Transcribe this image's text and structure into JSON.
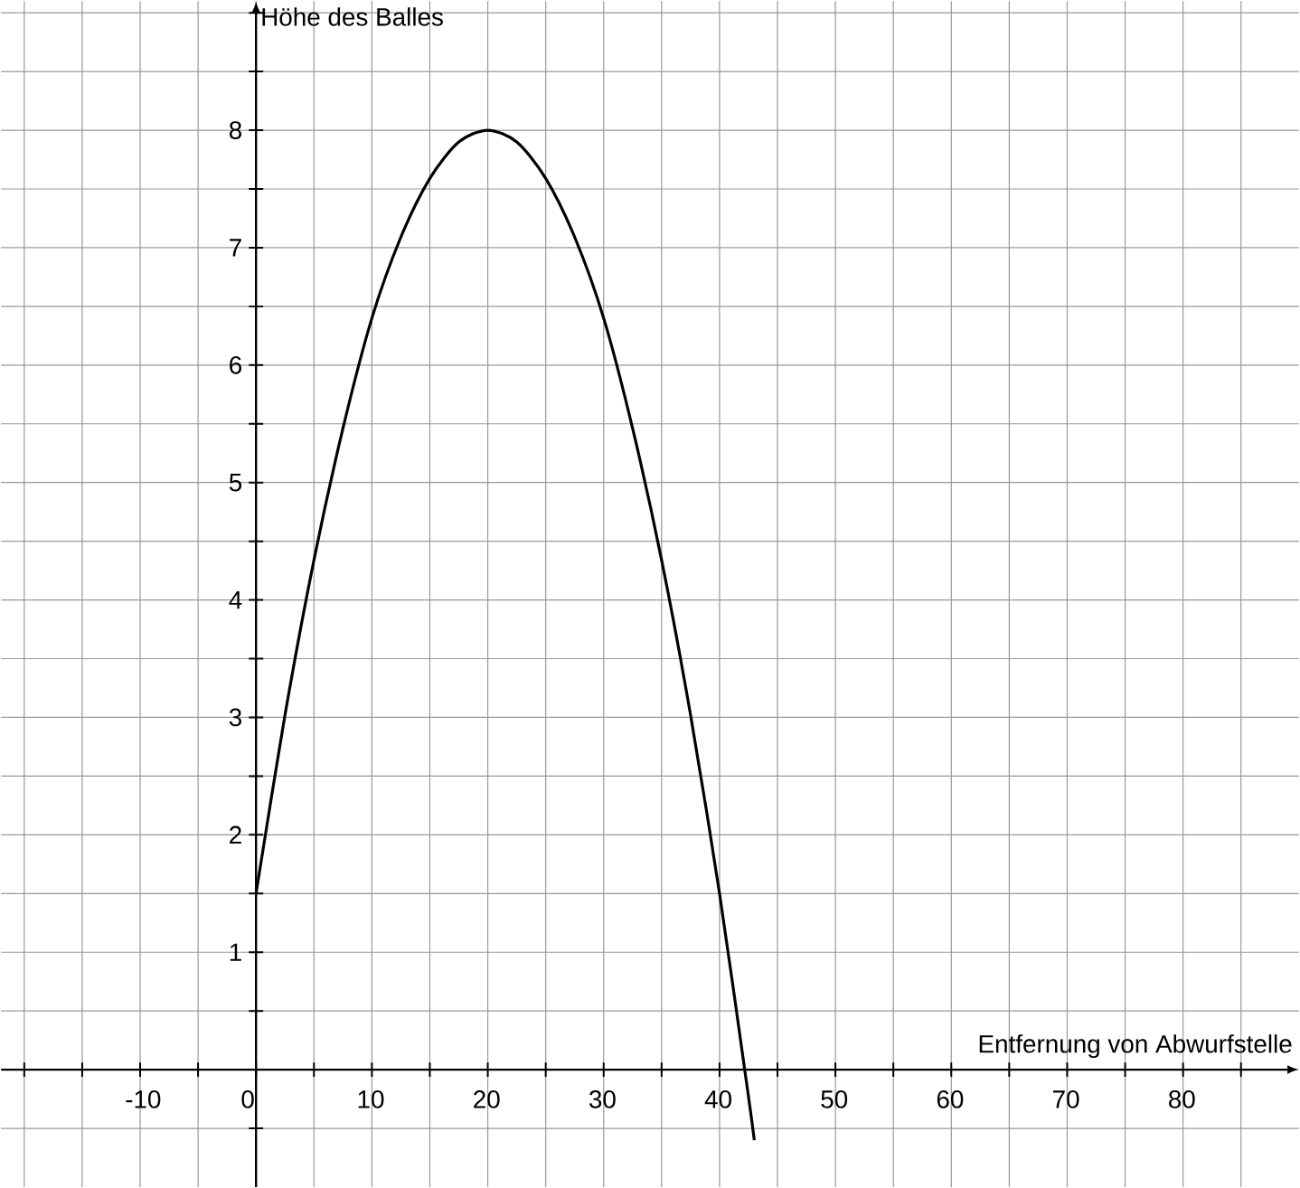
{
  "chart_data": {
    "type": "line",
    "xlabel": "Entfernung von Abwurfstelle",
    "ylabel": "Höhe des Balles",
    "x": [
      0,
      2.5,
      5,
      7.5,
      10,
      12.5,
      15,
      17.5,
      20,
      22.5,
      25,
      27.5,
      30,
      32.5,
      35,
      37.5,
      40,
      42.5,
      43
    ],
    "series": [
      {
        "color": "#000000",
        "values": [
          1.5,
          3.02,
          4.34,
          5.46,
          6.4,
          7.09,
          7.59,
          7.9,
          8,
          7.9,
          7.59,
          7.09,
          6.4,
          5.46,
          4.34,
          3.02,
          1.5,
          -0.23,
          -0.6
        ]
      }
    ],
    "xlim": [
      -22,
      90
    ],
    "ylim": [
      -1,
      9.1
    ],
    "xticks": [
      {
        "value": -20,
        "label": null
      },
      {
        "value": -15,
        "label": null
      },
      -10,
      {
        "value": -5,
        "label": null
      },
      0,
      {
        "value": 5,
        "label": null
      },
      10,
      {
        "value": 15,
        "label": null
      },
      20,
      {
        "value": 25,
        "label": null
      },
      30,
      {
        "value": 35,
        "label": null
      },
      40,
      {
        "value": 45,
        "label": null
      },
      50,
      {
        "value": 55,
        "label": null
      },
      60,
      {
        "value": 65,
        "label": null
      },
      70,
      {
        "value": 75,
        "label": null
      },
      80,
      {
        "value": 85,
        "label": null
      }
    ],
    "yticks": [
      {
        "value": -0.5,
        "label": null
      },
      {
        "value": 0.5,
        "label": null
      },
      1,
      {
        "value": 1.5,
        "label": null
      },
      2,
      {
        "value": 2.5,
        "label": null
      },
      3,
      {
        "value": 3.5,
        "label": null
      },
      4,
      {
        "value": 4.5,
        "label": null
      },
      5,
      {
        "value": 5.5,
        "label": null
      },
      6,
      {
        "value": 6.5,
        "label": null
      },
      7,
      {
        "value": 7.5,
        "label": null
      },
      8,
      {
        "value": 8.5,
        "label": null
      },
      {
        "value": 9,
        "label": null
      }
    ],
    "grid": true
  }
}
